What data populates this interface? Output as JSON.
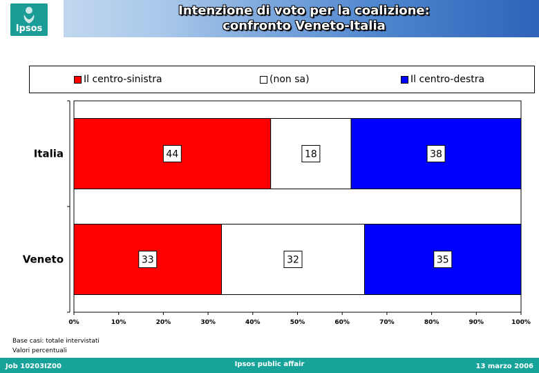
{
  "header": {
    "logo_text": "Ipsos",
    "title_line1": "Intenzione di voto per la coalizione:",
    "title_line2": "confronto Veneto-Italia"
  },
  "chart_data": {
    "type": "bar",
    "orientation": "horizontal",
    "stacked": true,
    "categories": [
      "Italia",
      "Veneto"
    ],
    "series": [
      {
        "name": "Il centro-sinistra",
        "color": "#ff0000",
        "values": [
          44,
          33
        ]
      },
      {
        "name": "(non sa)",
        "color": "#ffffff",
        "values": [
          18,
          32
        ]
      },
      {
        "name": "Il centro-destra",
        "color": "#0000ff",
        "values": [
          38,
          35
        ]
      }
    ],
    "x_ticks": [
      "0%",
      "10%",
      "20%",
      "30%",
      "40%",
      "50%",
      "60%",
      "70%",
      "80%",
      "90%",
      "100%"
    ],
    "xlim": [
      0,
      100
    ],
    "legend_position": "top",
    "grid": false
  },
  "notes": {
    "line1": "Base casi: totale intervistati",
    "line2": "Valori percentuali"
  },
  "footer": {
    "left": "Job 10203IZ00",
    "center": "Ipsos public affair",
    "right": "13 marzo 2006"
  }
}
